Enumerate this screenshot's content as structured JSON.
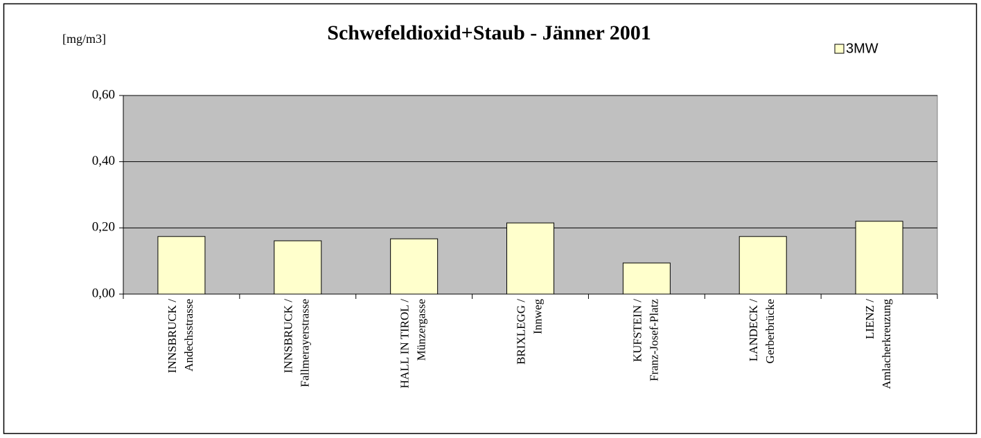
{
  "chart_data": {
    "type": "bar",
    "title": "Schwefeldioxid+Staub - Jänner 2001",
    "y_label": "[mg/m3]",
    "categories": [
      [
        "INNSBRUCK /",
        "Andechsstrasse"
      ],
      [
        "INNSBRUCK /",
        "Fallmerayerstrasse"
      ],
      [
        "HALL IN TIROL /",
        "Münzergasse"
      ],
      [
        "BRIXLEGG /",
        "Innweg"
      ],
      [
        "KUFSTEIN /",
        "Franz-Josef-Platz"
      ],
      [
        "LANDECK /",
        "Gerberbrücke"
      ],
      [
        "LIENZ /",
        "Amlacherkreuzung"
      ]
    ],
    "series": [
      {
        "name": "3MW",
        "color": "#ffffcc",
        "values": [
          0.174,
          0.161,
          0.167,
          0.215,
          0.094,
          0.174,
          0.22
        ]
      }
    ],
    "ylim": [
      0,
      0.6
    ],
    "yticks": [
      {
        "value": 0,
        "label": "0,00"
      },
      {
        "value": 0.2,
        "label": "0,20"
      },
      {
        "value": 0.4,
        "label": "0,40"
      },
      {
        "value": 0.6,
        "label": "0,60"
      }
    ],
    "grid": true,
    "legend": "top-right",
    "plot_background": "#c0c0c0"
  }
}
